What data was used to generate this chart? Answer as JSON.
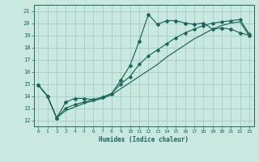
{
  "xlabel": "Humidex (Indice chaleur)",
  "bg_color": "#c8e8e0",
  "grid_color": "#a8ccc4",
  "line_color": "#1a6858",
  "xlim": [
    -0.5,
    23.5
  ],
  "ylim": [
    11.5,
    21.5
  ],
  "xticks": [
    0,
    1,
    2,
    3,
    4,
    5,
    6,
    7,
    8,
    9,
    10,
    11,
    12,
    13,
    14,
    15,
    16,
    17,
    18,
    19,
    20,
    21,
    22,
    23
  ],
  "yticks": [
    12,
    13,
    14,
    15,
    16,
    17,
    18,
    19,
    20,
    21
  ],
  "line1_x": [
    0,
    1,
    2,
    3,
    4,
    5,
    6,
    7,
    8,
    9,
    10,
    11,
    12,
    13,
    14,
    15,
    16,
    17,
    18,
    19,
    20,
    21,
    22,
    23
  ],
  "line1_y": [
    14.9,
    14.0,
    12.2,
    13.5,
    13.8,
    13.8,
    13.7,
    13.9,
    14.2,
    15.3,
    16.5,
    18.5,
    20.7,
    19.9,
    20.2,
    20.2,
    20.0,
    19.9,
    20.0,
    19.5,
    19.6,
    19.5,
    19.2,
    19.0
  ],
  "line2_x": [
    0,
    1,
    2,
    3,
    4,
    5,
    6,
    7,
    8,
    9,
    10,
    11,
    12,
    13,
    14,
    15,
    16,
    17,
    18,
    19,
    20,
    21,
    22,
    23
  ],
  "line2_y": [
    14.9,
    14.0,
    12.2,
    13.0,
    13.3,
    13.5,
    13.7,
    13.9,
    14.2,
    15.0,
    15.6,
    16.6,
    17.3,
    17.8,
    18.3,
    18.8,
    19.2,
    19.5,
    19.8,
    20.0,
    20.1,
    20.2,
    20.3,
    19.1
  ],
  "line3_x": [
    0,
    1,
    2,
    3,
    4,
    5,
    6,
    7,
    8,
    9,
    10,
    11,
    12,
    13,
    14,
    15,
    16,
    17,
    18,
    19,
    20,
    21,
    22,
    23
  ],
  "line3_y": [
    14.9,
    14.0,
    12.2,
    12.8,
    13.1,
    13.4,
    13.6,
    13.8,
    14.1,
    14.6,
    15.1,
    15.6,
    16.1,
    16.6,
    17.2,
    17.7,
    18.2,
    18.7,
    19.1,
    19.5,
    19.8,
    20.0,
    20.1,
    18.95
  ],
  "marker_x1": [
    0,
    1,
    2,
    3,
    4,
    5,
    6,
    7,
    8,
    9,
    10,
    11,
    12,
    13,
    14,
    15,
    16,
    17,
    18,
    19,
    20,
    21,
    22,
    23
  ],
  "marker_x2": [
    0,
    1,
    2,
    3,
    4,
    5,
    6,
    7,
    8,
    9,
    10,
    11,
    12,
    13,
    14,
    15,
    16,
    17,
    18,
    19,
    20,
    21,
    22,
    23
  ]
}
